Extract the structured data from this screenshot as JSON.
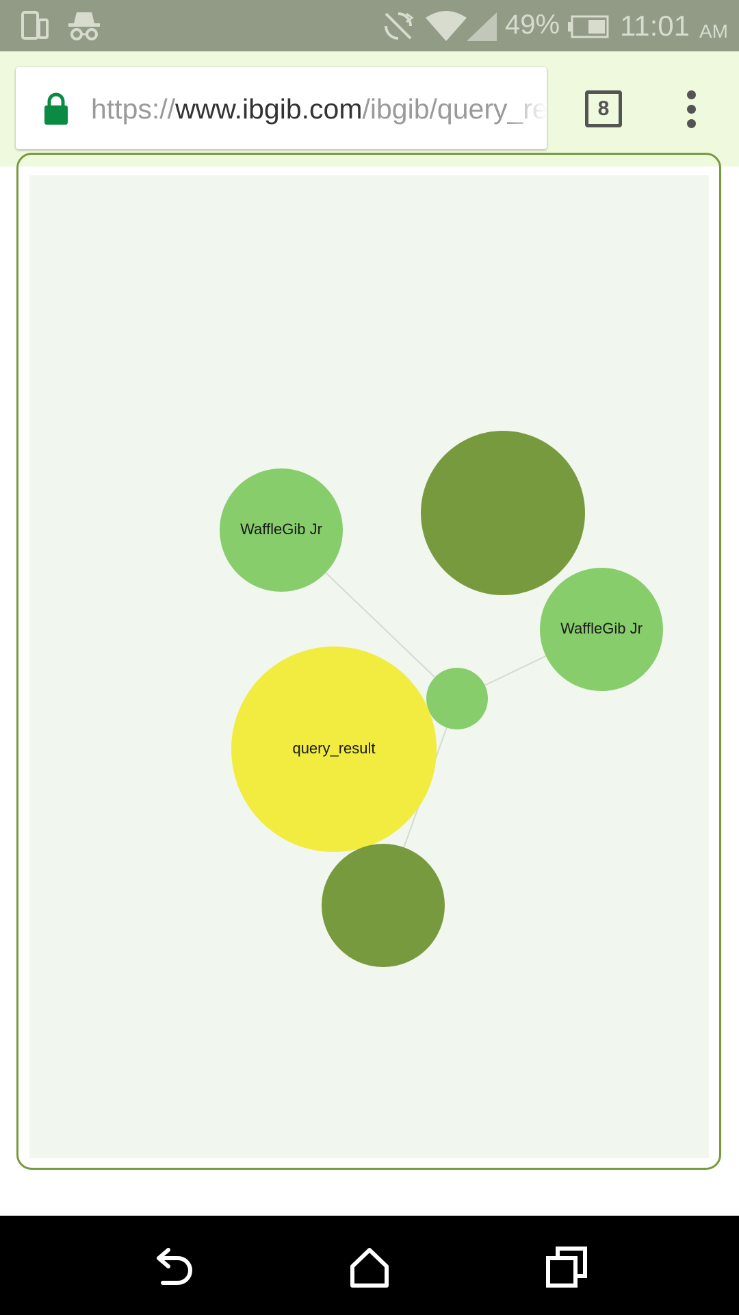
{
  "status_bar": {
    "battery_percent": "49%",
    "time": "11:01",
    "ampm": "AM",
    "icons": [
      "phone-rotate-icon",
      "incognito-icon",
      "sync-off-icon",
      "wifi-icon",
      "signal-icon",
      "battery-icon"
    ]
  },
  "toolbar": {
    "url": {
      "scheme": "https://",
      "host": "www.ibgib.com",
      "path": "/ibgib/query_result"
    },
    "tab_count": "8",
    "icons": [
      "lock-icon",
      "tab-switcher-icon",
      "overflow-menu-icon"
    ]
  },
  "graph": {
    "colors": {
      "background": "#f1f6ee",
      "light_green": "#87cd6c",
      "dark_olive": "#789a3f",
      "yellow": "#f1ec3f",
      "edge": "#d6dbd0",
      "frame": "#779a3f"
    },
    "nodes": [
      {
        "id": "waffle-left",
        "label": "WaffleGib Jr",
        "color": "light_green"
      },
      {
        "id": "top-right",
        "label": "",
        "color": "dark_olive"
      },
      {
        "id": "waffle-right",
        "label": "WaffleGib Jr",
        "color": "light_green"
      },
      {
        "id": "hub",
        "label": "",
        "color": "light_green"
      },
      {
        "id": "query-result",
        "label": "query_result",
        "color": "yellow"
      },
      {
        "id": "bottom",
        "label": "",
        "color": "dark_olive"
      }
    ],
    "edges": [
      [
        "hub",
        "waffle-left"
      ],
      [
        "hub",
        "waffle-right"
      ],
      [
        "hub",
        "bottom"
      ]
    ]
  },
  "nav_bar": {
    "icons": [
      "back-icon",
      "home-icon",
      "recents-icon"
    ]
  }
}
